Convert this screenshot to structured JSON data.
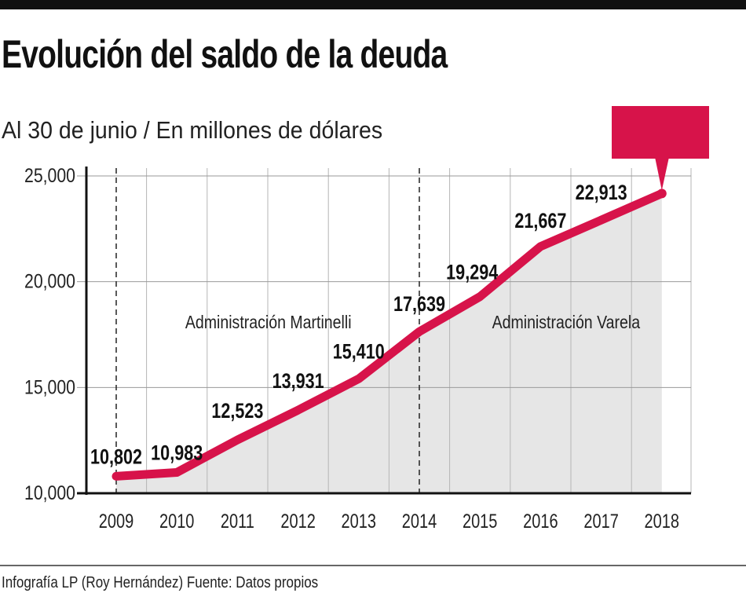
{
  "title": "Evolución del saldo de la deuda",
  "subtitle": "Al 30 de junio / En millones de dólares",
  "credit": "Infografía LP (Roy Hernández) Fuente: Datos propios",
  "colors": {
    "line": "#d7134a",
    "fill": "#e6e6e6",
    "grid": "#9a9a9a",
    "callout": "#d7134a",
    "topbar": "#111111"
  },
  "chart_data": {
    "type": "area",
    "title": "Evolución del saldo de la deuda",
    "subtitle": "Al 30 de junio / En millones de dólares",
    "categories": [
      "2009",
      "2010",
      "2011",
      "2012",
      "2013",
      "2014",
      "2015",
      "2016",
      "2017",
      "2018"
    ],
    "values": [
      10802,
      10983,
      12523,
      13931,
      15410,
      17639,
      19294,
      21667,
      22913,
      24170
    ],
    "data_labels": [
      "10,802",
      "10,983",
      "12,523",
      "13,931",
      "15,410",
      "17,639",
      "19,294",
      "21,667",
      "22,913",
      ""
    ],
    "ylim": [
      10000,
      25000
    ],
    "yticks": [
      10000,
      15000,
      20000,
      25000
    ],
    "ytick_labels": [
      "10,000",
      "15,000",
      "20,000",
      "25,000"
    ],
    "grid": true,
    "annotations": [
      {
        "text": "Administración Martinelli",
        "from": "2009"
      },
      {
        "text": "Administración Varela",
        "from": "2014"
      }
    ],
    "callout": {
      "at": "2018",
      "text": ""
    }
  }
}
